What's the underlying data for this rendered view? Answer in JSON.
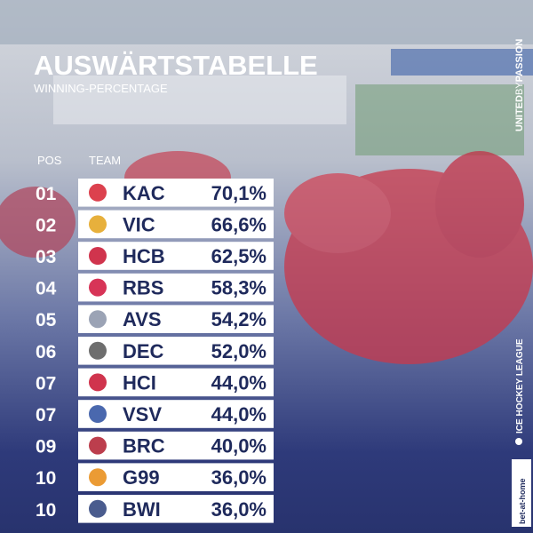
{
  "header": {
    "title": "AUSWÄRTSTABELLE",
    "subtitle": "WINNING-PERCENTAGE"
  },
  "table": {
    "columns": [
      "POS",
      "TEAM"
    ],
    "rows": [
      [
        "01",
        "KAC",
        "70,1%"
      ],
      [
        "02",
        "VIC",
        "66,6%"
      ],
      [
        "03",
        "HCB",
        "62,5%"
      ],
      [
        "04",
        "RBS",
        "58,3%"
      ],
      [
        "05",
        "AVS",
        "54,2%"
      ],
      [
        "06",
        "DEC",
        "52,0%"
      ],
      [
        "07",
        "HCI",
        "44,0%"
      ],
      [
        "07",
        "VSV",
        "44,0%"
      ],
      [
        "09",
        "BRC",
        "40,0%"
      ],
      [
        "10",
        "G99",
        "36,0%"
      ],
      [
        "10",
        "BWI",
        "36,0%"
      ]
    ]
  },
  "side": {
    "tagline_1": "UNITED",
    "tagline_2": "BY",
    "tagline_3": "PASSION",
    "league": "ICE HOCKEY LEAGUE",
    "sponsor": "bet-at-home"
  }
}
